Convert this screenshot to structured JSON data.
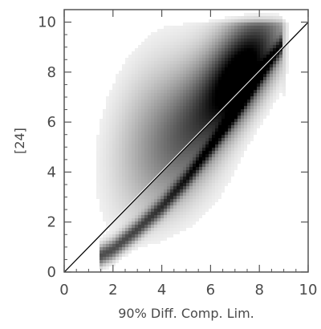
{
  "chart_data": {
    "type": "heatmap",
    "title": "",
    "xlabel": "90% Diff. Comp. Lim.",
    "ylabel": "[24]",
    "xlim": [
      0,
      10
    ],
    "ylim": [
      0,
      10.5
    ],
    "x_ticks": [
      0,
      2,
      4,
      6,
      8,
      10
    ],
    "y_ticks": [
      0,
      2,
      4,
      6,
      8,
      10
    ],
    "grid": false,
    "legend": "none",
    "colormap": [
      "#ffffff",
      "#000000"
    ],
    "reference_line": {
      "x": [
        0,
        10
      ],
      "y": [
        0,
        10
      ],
      "color": "#000000"
    },
    "density_components": [
      {
        "name": "",
        "description": "",
        "cx": 7.3,
        "cy": 8.0,
        "sx": 1.0,
        "sy": 1.5,
        "rho": 0.55,
        "weight": 1.0
      },
      {
        "name": "",
        "cx": 5.4,
        "cy": 6.0,
        "sx": 1.2,
        "sy": 1.8,
        "rho": 0.5,
        "weight": 0.45
      },
      {
        "name": "",
        "cx": 3.6,
        "cy": 5.5,
        "sx": 1.1,
        "sy": 2.0,
        "rho": 0.3,
        "weight": 0.18
      },
      {
        "name": "",
        "cx": 6.2,
        "cy": 3.0,
        "sx": 1.4,
        "sy": 1.4,
        "rho": 0.3,
        "weight": 0.12
      }
    ],
    "ridge": [
      {
        "x": 1.4,
        "y": 0.6
      },
      {
        "x": 2.0,
        "y": 0.9
      },
      {
        "x": 3.0,
        "y": 1.7
      },
      {
        "x": 4.0,
        "y": 2.6
      },
      {
        "x": 5.0,
        "y": 3.7
      },
      {
        "x": 6.0,
        "y": 5.0
      },
      {
        "x": 7.0,
        "y": 6.4
      },
      {
        "x": 8.0,
        "y": 7.9
      },
      {
        "x": 9.0,
        "y": 9.2
      }
    ]
  }
}
